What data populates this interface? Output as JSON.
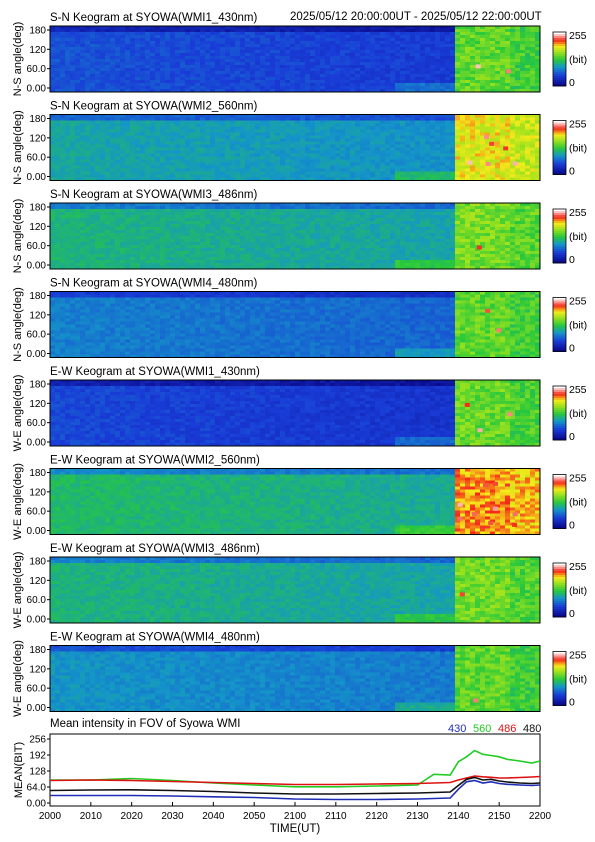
{
  "header": {
    "time_range": "2025/05/12 20:00:00UT - 2025/05/12 22:00:00UT"
  },
  "colorbar": {
    "max_label": "255",
    "unit_label": "(bit)",
    "min_label": "0"
  },
  "keogram_panels": [
    {
      "title": "S-N Keogram at SYOWA(WMI1_430nm)",
      "ylabel": "N-S angle(deg)",
      "ticks": [
        "180",
        "120",
        "60.0",
        "0.00"
      ],
      "base": 0.22,
      "burst": 0.55,
      "bright_spots": 2
    },
    {
      "title": "S-N Keogram at SYOWA(WMI2_560nm)",
      "ylabel": "N-S angle(deg)",
      "ticks": [
        "180",
        "120",
        "60.0",
        "0.00"
      ],
      "base": 0.38,
      "burst": 0.72,
      "bright_spots": 6
    },
    {
      "title": "S-N Keogram at SYOWA(WMI3_486nm)",
      "ylabel": "N-S angle(deg)",
      "ticks": [
        "180",
        "120",
        "60.0",
        "0.00"
      ],
      "base": 0.42,
      "burst": 0.58,
      "bright_spots": 1
    },
    {
      "title": "S-N Keogram at SYOWA(WMI4_480nm)",
      "ylabel": "N-S angle(deg)",
      "ticks": [
        "180",
        "120",
        "60.0",
        "0.00"
      ],
      "base": 0.3,
      "burst": 0.55,
      "bright_spots": 2
    },
    {
      "title": "E-W Keogram at SYOWA(WMI1_430nm)",
      "ylabel": "W-E angle(deg)",
      "ticks": [
        "180",
        "120",
        "60.0",
        "0.00"
      ],
      "base": 0.2,
      "burst": 0.56,
      "bright_spots": 3
    },
    {
      "title": "E-W Keogram at SYOWA(WMI2_560nm)",
      "ylabel": "W-E angle(deg)",
      "ticks": [
        "180",
        "120",
        "60.0",
        "0.00"
      ],
      "base": 0.44,
      "burst": 0.8,
      "bright_spots": 10
    },
    {
      "title": "E-W Keogram at SYOWA(WMI3_486nm)",
      "ylabel": "W-E angle(deg)",
      "ticks": [
        "180",
        "120",
        "60.0",
        "0.00"
      ],
      "base": 0.42,
      "burst": 0.57,
      "bright_spots": 1
    },
    {
      "title": "E-W Keogram at SYOWA(WMI4_480nm)",
      "ylabel": "W-E angle(deg)",
      "ticks": [
        "180",
        "120",
        "60.0",
        "0.00"
      ],
      "base": 0.34,
      "burst": 0.55,
      "bright_spots": 1
    }
  ],
  "colors": {
    "ch430": "#1f2db4",
    "ch560": "#22cc22",
    "ch486": "#dd1111",
    "ch480": "#111111"
  },
  "chart_data": {
    "type": "line",
    "title": "Mean intensity in FOV of Syowa WMI",
    "xlabel": "TIME(UT)",
    "ylabel": "MEAN(BIT)",
    "xlim": [
      2000,
      2200
    ],
    "ylim": [
      0,
      256
    ],
    "xticks": [
      "2000",
      "2010",
      "2020",
      "2030",
      "2040",
      "2050",
      "2100",
      "2110",
      "2120",
      "2130",
      "2140",
      "2150",
      "2200"
    ],
    "xtick_minutes": [
      0,
      10,
      20,
      30,
      40,
      50,
      60,
      70,
      80,
      90,
      100,
      110,
      120
    ],
    "yticks": [
      "256",
      "192",
      "128",
      "64.0",
      "0.00"
    ],
    "ytick_values": [
      256,
      192,
      128,
      64,
      0
    ],
    "x": [
      0,
      10,
      20,
      30,
      40,
      50,
      60,
      70,
      80,
      90,
      94,
      98,
      100,
      102,
      104,
      106,
      108,
      110,
      112,
      115,
      118,
      120
    ],
    "series": [
      {
        "name": "430",
        "color": "#1f2db4",
        "values": [
          30,
          30,
          30,
          28,
          25,
          22,
          16,
          14,
          14,
          16,
          18,
          20,
          55,
          85,
          90,
          80,
          85,
          78,
          75,
          72,
          70,
          72
        ]
      },
      {
        "name": "560",
        "color": "#22cc22",
        "values": [
          92,
          92,
          98,
          90,
          80,
          72,
          65,
          65,
          68,
          72,
          115,
          112,
          165,
          185,
          210,
          195,
          190,
          185,
          175,
          168,
          160,
          168
        ]
      },
      {
        "name": "486",
        "color": "#dd1111",
        "values": [
          90,
          92,
          90,
          86,
          82,
          78,
          74,
          74,
          76,
          78,
          80,
          82,
          92,
          100,
          108,
          105,
          103,
          100,
          100,
          102,
          104,
          106
        ]
      },
      {
        "name": "480",
        "color": "#111111",
        "values": [
          50,
          52,
          53,
          50,
          46,
          40,
          36,
          36,
          38,
          40,
          42,
          44,
          70,
          95,
          102,
          92,
          95,
          88,
          84,
          80,
          78,
          80
        ]
      }
    ]
  }
}
